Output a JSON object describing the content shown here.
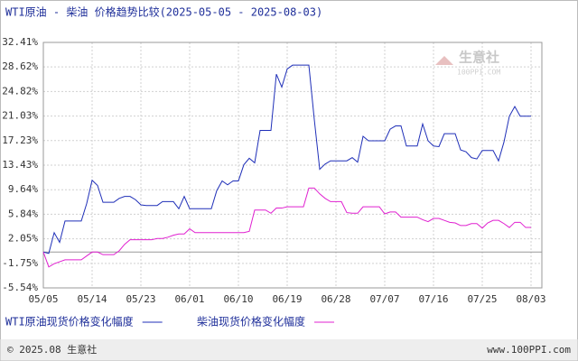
{
  "chart_data": {
    "type": "line",
    "title": "WTI原油 - 柴油 价格趋势比较(2025-05-05 - 2025-08-03)",
    "watermark": [
      "生意社",
      "100PPI.COM"
    ],
    "footer": [
      "© 2025.08 生意社",
      "www.100PPI.com"
    ],
    "categories": [
      "05/05",
      null,
      null,
      null,
      null,
      null,
      null,
      null,
      null,
      "05/14",
      null,
      null,
      null,
      null,
      null,
      null,
      null,
      null,
      "05/23",
      null,
      null,
      null,
      null,
      null,
      null,
      null,
      null,
      "06/01",
      null,
      null,
      null,
      null,
      null,
      null,
      null,
      null,
      "06/10",
      null,
      null,
      null,
      null,
      null,
      null,
      null,
      null,
      "06/19",
      null,
      null,
      null,
      null,
      null,
      null,
      null,
      null,
      "06/28",
      null,
      null,
      null,
      null,
      null,
      null,
      null,
      null,
      "07/07",
      null,
      null,
      null,
      null,
      null,
      null,
      null,
      null,
      "07/16",
      null,
      null,
      null,
      null,
      null,
      null,
      null,
      null,
      "07/25",
      null,
      null,
      null,
      null,
      null,
      null,
      null,
      null,
      "08/03"
    ],
    "series": [
      {
        "name": "WTI原油现货价格变化幅度",
        "color": "#1f2fb8",
        "values": [
          0,
          -0.2,
          3.0,
          1.5,
          4.8,
          4.8,
          4.8,
          4.8,
          7.5,
          11.1,
          10.3,
          7.7,
          7.7,
          7.7,
          8.3,
          8.6,
          8.6,
          8.1,
          7.3,
          7.2,
          7.2,
          7.2,
          7.8,
          7.8,
          7.8,
          6.7,
          8.6,
          6.7,
          6.7,
          6.7,
          6.7,
          6.7,
          9.5,
          11.0,
          10.4,
          11.0,
          11.0,
          13.5,
          14.5,
          13.8,
          18.8,
          18.8,
          18.8,
          27.5,
          25.5,
          28.3,
          28.9,
          28.9,
          28.9,
          28.9,
          20.5,
          12.8,
          13.6,
          14.1,
          14.1,
          14.1,
          14.1,
          14.6,
          13.9,
          17.9,
          17.2,
          17.2,
          17.2,
          17.2,
          19.0,
          19.5,
          19.5,
          16.4,
          16.4,
          16.4,
          19.8,
          17.2,
          16.4,
          16.3,
          18.3,
          18.3,
          18.3,
          15.8,
          15.5,
          14.6,
          14.4,
          15.7,
          15.7,
          15.7,
          14.1,
          17.0,
          21.0,
          22.5,
          21.0,
          21.0,
          21.0
        ]
      },
      {
        "name": "柴油现货价格变化幅度",
        "color": "#e020d0",
        "values": [
          0,
          -2.3,
          -1.8,
          -1.5,
          -1.2,
          -1.2,
          -1.2,
          -1.2,
          -0.6,
          0,
          0,
          -0.4,
          -0.4,
          -0.4,
          0.2,
          1.2,
          1.9,
          1.9,
          1.9,
          1.9,
          1.9,
          2.1,
          2.1,
          2.3,
          2.6,
          2.8,
          2.8,
          3.6,
          3.0,
          3.0,
          3.0,
          3.0,
          3.0,
          3.0,
          3.0,
          3.0,
          3.0,
          3.0,
          3.2,
          6.5,
          6.5,
          6.5,
          6.0,
          6.8,
          6.8,
          7.0,
          7.0,
          7.0,
          7.0,
          9.9,
          9.9,
          9.0,
          8.3,
          7.8,
          7.8,
          7.8,
          6.1,
          6.0,
          6.0,
          7.0,
          7.0,
          7.0,
          7.0,
          5.9,
          6.2,
          6.2,
          5.4,
          5.4,
          5.4,
          5.4,
          5.0,
          4.7,
          5.2,
          5.2,
          4.9,
          4.6,
          4.5,
          4.1,
          4.1,
          4.4,
          4.4,
          3.7,
          4.5,
          4.9,
          4.9,
          4.4,
          3.8,
          4.6,
          4.6,
          3.8,
          3.8
        ]
      }
    ],
    "ylim": [
      -5.54,
      32.41
    ],
    "yticks": [
      {
        "value": -5.54,
        "label": "-5.54%"
      },
      {
        "value": -1.75,
        "label": "-1.75%"
      },
      {
        "value": 2.05,
        "label": "2.05%"
      },
      {
        "value": 5.84,
        "label": "5.84%"
      },
      {
        "value": 9.64,
        "label": "9.64%"
      },
      {
        "value": 13.43,
        "label": "13.43%"
      },
      {
        "value": 17.23,
        "label": "17.23%"
      },
      {
        "value": 21.03,
        "label": "21.03%"
      },
      {
        "value": 24.82,
        "label": "24.82%"
      },
      {
        "value": 28.62,
        "label": "28.62%"
      },
      {
        "value": 32.41,
        "label": "32.41%"
      }
    ],
    "grid": true
  }
}
